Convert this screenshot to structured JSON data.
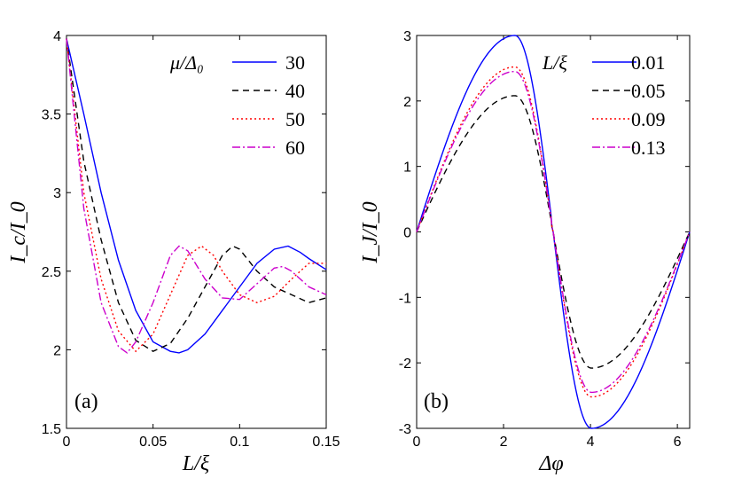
{
  "chart_data": [
    {
      "type": "line",
      "panel_label": "(a)",
      "xlabel": "L/ξ",
      "ylabel": "I_c/I_0",
      "xlim": [
        0,
        0.15
      ],
      "ylim": [
        1.5,
        4
      ],
      "xticks": [
        "0",
        "0.05",
        "0.1",
        "0.15"
      ],
      "yticks": [
        "1.5",
        "2",
        "2.5",
        "3",
        "3.5",
        "4"
      ],
      "xtick_values": [
        0,
        0.05,
        0.1,
        0.15
      ],
      "ytick_values": [
        1.5,
        2,
        2.5,
        3,
        3.5,
        4
      ],
      "legend_title": "μ/Δ₀",
      "legend_position": "top-right",
      "series": [
        {
          "name": "30",
          "color": "#0000ff",
          "dash": "none",
          "values": [
            [
              0,
              3.98
            ],
            [
              0.01,
              3.5
            ],
            [
              0.02,
              3.0
            ],
            [
              0.03,
              2.57
            ],
            [
              0.04,
              2.25
            ],
            [
              0.05,
              2.05
            ],
            [
              0.06,
              1.99
            ],
            [
              0.065,
              1.98
            ],
            [
              0.07,
              2.0
            ],
            [
              0.08,
              2.1
            ],
            [
              0.09,
              2.25
            ],
            [
              0.1,
              2.4
            ],
            [
              0.11,
              2.55
            ],
            [
              0.12,
              2.64
            ],
            [
              0.128,
              2.66
            ],
            [
              0.135,
              2.62
            ],
            [
              0.14,
              2.58
            ],
            [
              0.15,
              2.51
            ]
          ]
        },
        {
          "name": "40",
          "color": "#000000",
          "dash": "7,5",
          "values": [
            [
              0,
              3.98
            ],
            [
              0.01,
              3.2
            ],
            [
              0.02,
              2.7
            ],
            [
              0.03,
              2.3
            ],
            [
              0.04,
              2.06
            ],
            [
              0.05,
              1.99
            ],
            [
              0.06,
              2.04
            ],
            [
              0.07,
              2.2
            ],
            [
              0.08,
              2.4
            ],
            [
              0.09,
              2.6
            ],
            [
              0.096,
              2.66
            ],
            [
              0.1,
              2.64
            ],
            [
              0.11,
              2.5
            ],
            [
              0.12,
              2.4
            ],
            [
              0.13,
              2.35
            ],
            [
              0.14,
              2.3
            ],
            [
              0.15,
              2.33
            ]
          ]
        },
        {
          "name": "50",
          "color": "#ff0000",
          "dash": "2,3",
          "values": [
            [
              0,
              3.98
            ],
            [
              0.01,
              3.0
            ],
            [
              0.02,
              2.45
            ],
            [
              0.03,
              2.12
            ],
            [
              0.04,
              1.99
            ],
            [
              0.05,
              2.1
            ],
            [
              0.06,
              2.35
            ],
            [
              0.07,
              2.6
            ],
            [
              0.078,
              2.66
            ],
            [
              0.085,
              2.6
            ],
            [
              0.09,
              2.5
            ],
            [
              0.1,
              2.35
            ],
            [
              0.11,
              2.3
            ],
            [
              0.12,
              2.34
            ],
            [
              0.13,
              2.45
            ],
            [
              0.14,
              2.55
            ],
            [
              0.15,
              2.55
            ]
          ]
        },
        {
          "name": "60",
          "color": "#cc00cc",
          "dash": "9,3,2,3",
          "values": [
            [
              0,
              3.98
            ],
            [
              0.01,
              2.9
            ],
            [
              0.02,
              2.3
            ],
            [
              0.03,
              2.02
            ],
            [
              0.035,
              1.98
            ],
            [
              0.04,
              2.05
            ],
            [
              0.05,
              2.3
            ],
            [
              0.06,
              2.6
            ],
            [
              0.065,
              2.66
            ],
            [
              0.07,
              2.63
            ],
            [
              0.08,
              2.45
            ],
            [
              0.09,
              2.33
            ],
            [
              0.1,
              2.32
            ],
            [
              0.11,
              2.42
            ],
            [
              0.12,
              2.52
            ],
            [
              0.125,
              2.53
            ],
            [
              0.13,
              2.5
            ],
            [
              0.14,
              2.4
            ],
            [
              0.15,
              2.35
            ]
          ]
        }
      ]
    },
    {
      "type": "line",
      "panel_label": "(b)",
      "xlabel": "Δφ",
      "ylabel": "I_J/I_0",
      "xlim": [
        0,
        6.283
      ],
      "ylim": [
        -3,
        3
      ],
      "xticks": [
        "0",
        "2",
        "4",
        "6"
      ],
      "yticks": [
        "-3",
        "-2",
        "-1",
        "0",
        "1",
        "2",
        "3"
      ],
      "xtick_values": [
        0,
        2,
        4,
        6
      ],
      "ytick_values": [
        -3,
        -2,
        -1,
        0,
        1,
        2,
        3
      ],
      "legend_title": "L/ξ",
      "legend_position": "top-right",
      "series": [
        {
          "name": "0.01",
          "color": "#0000ff",
          "dash": "none",
          "amp": 3.0,
          "tail": 0.12
        },
        {
          "name": "0.05",
          "color": "#000000",
          "dash": "7,5",
          "amp": 2.08,
          "tail": 0.12
        },
        {
          "name": "0.09",
          "color": "#ff0000",
          "dash": "2,3",
          "amp": 2.52,
          "tail": 0.12
        },
        {
          "name": "0.13",
          "color": "#cc00cc",
          "dash": "9,3,2,3",
          "amp": 2.45,
          "tail": 0.12
        }
      ]
    }
  ]
}
